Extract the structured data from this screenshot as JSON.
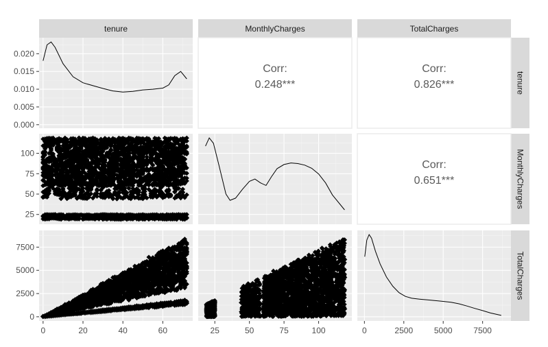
{
  "variables": [
    "tenure",
    "MonthlyCharges",
    "TotalCharges"
  ],
  "chart_data": {
    "type": "pairs",
    "variables": [
      "tenure",
      "MonthlyCharges",
      "TotalCharges"
    ],
    "axes": {
      "tenure": {
        "range": [
          -2,
          75
        ],
        "ticks": [
          0,
          20,
          40,
          60
        ]
      },
      "MonthlyCharges": {
        "range": [
          13,
          124
        ],
        "ticks": [
          25,
          50,
          75,
          100
        ]
      },
      "TotalCharges": {
        "range": [
          -450,
          9300
        ],
        "ticks": [
          0,
          2500,
          5000,
          7500
        ]
      }
    },
    "densities": [
      {
        "variable": "tenure",
        "y_range": [
          -0.001,
          0.0245
        ],
        "y_ticks": [
          "0.000",
          "0.005",
          "0.010",
          "0.015",
          "0.020"
        ],
        "x": [
          0,
          2,
          4,
          6,
          10,
          15,
          20,
          25,
          30,
          35,
          40,
          45,
          50,
          55,
          60,
          63,
          66,
          69,
          72
        ],
        "y": [
          0.018,
          0.0225,
          0.0233,
          0.0218,
          0.0172,
          0.0135,
          0.0118,
          0.011,
          0.0102,
          0.0095,
          0.0092,
          0.0094,
          0.0098,
          0.01,
          0.0103,
          0.0112,
          0.0138,
          0.015,
          0.0129
        ]
      },
      {
        "variable": "MonthlyCharges",
        "x": [
          18.25,
          21,
          24,
          28,
          33,
          36,
          40,
          45,
          50,
          54,
          58,
          62,
          66,
          70,
          75,
          80,
          85,
          90,
          95,
          100,
          105,
          110,
          118.75
        ],
        "y": [
          0.0236,
          0.0262,
          0.0245,
          0.0175,
          0.0085,
          0.0065,
          0.0072,
          0.01,
          0.0125,
          0.0132,
          0.012,
          0.0112,
          0.014,
          0.0165,
          0.0178,
          0.0183,
          0.0181,
          0.0176,
          0.0166,
          0.0148,
          0.012,
          0.0082,
          0.0035
        ]
      },
      {
        "variable": "TotalCharges",
        "x": [
          19,
          150,
          300,
          450,
          700,
          1000,
          1400,
          1800,
          2200,
          2600,
          3000,
          3500,
          4000,
          4500,
          5000,
          5500,
          6000,
          6500,
          7000,
          7500,
          8000,
          8684
        ],
        "y": [
          0.00033,
          0.00042,
          0.00045,
          0.00043,
          0.00036,
          0.00029,
          0.00022,
          0.00017,
          0.000135,
          0.000115,
          0.000105,
          0.0001,
          9.6e-05,
          9.2e-05,
          8.8e-05,
          8.3e-05,
          7.5e-05,
          6.3e-05,
          5e-05,
          3.8e-05,
          2.5e-05,
          1.2e-05
        ]
      }
    ],
    "correlations": [
      {
        "row": "tenure",
        "col": "MonthlyCharges",
        "label": "Corr:",
        "value": "0.248***"
      },
      {
        "row": "tenure",
        "col": "TotalCharges",
        "label": "Corr:",
        "value": "0.826***"
      },
      {
        "row": "MonthlyCharges",
        "col": "TotalCharges",
        "label": "Corr:",
        "value": "0.651***"
      }
    ],
    "scatter": [
      {
        "x": "tenure",
        "y": "MonthlyCharges",
        "description": "dense cloud, MonthlyCharges 18–119 across tenure 0–72"
      },
      {
        "x": "tenure",
        "y": "TotalCharges",
        "description": "fan shape, TotalCharges ≈ tenure × MonthlyCharges"
      },
      {
        "x": "MonthlyCharges",
        "y": "TotalCharges",
        "description": "wedge shape, TotalCharges up to ≈ 72 × MonthlyCharges"
      }
    ]
  }
}
